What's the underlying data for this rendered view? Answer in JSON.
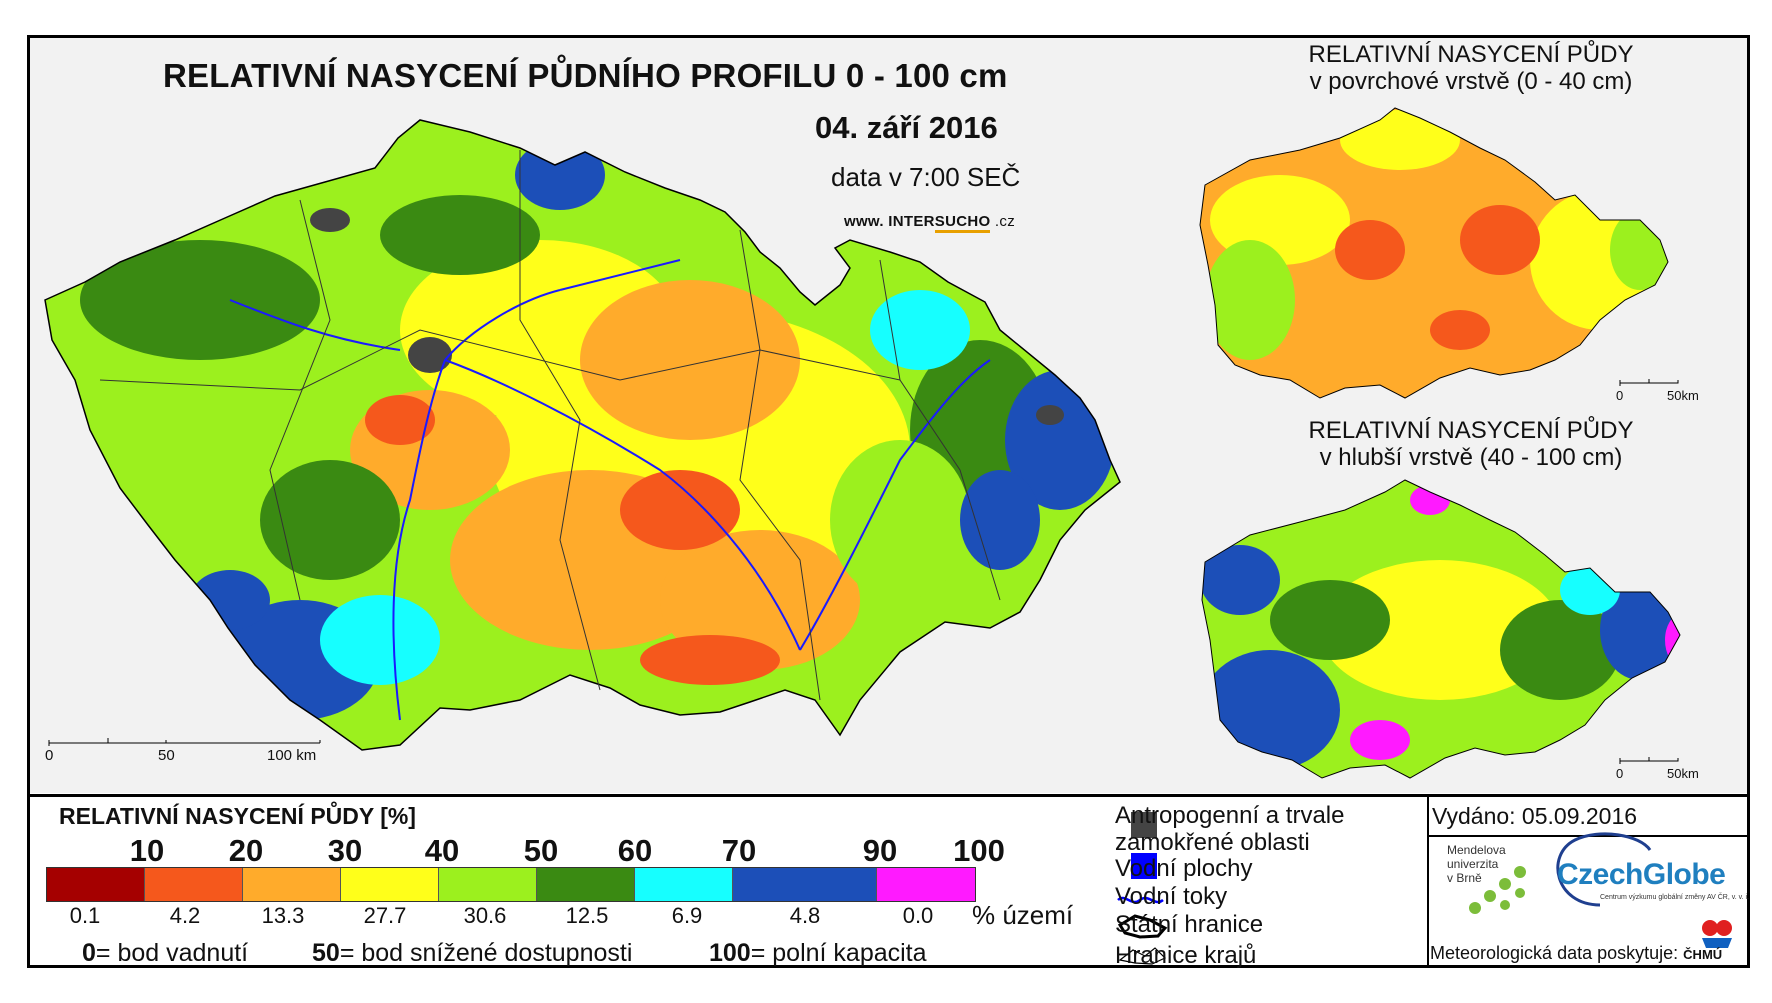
{
  "main_map": {
    "title": "RELATIVNÍ NASYCENÍ PŮDNÍHO PROFILU 0 - 100 cm",
    "date": "04. září 2016",
    "time": "data v 7:00 SEČ",
    "website_prefix": "www. INTER",
    "website_accent": "SUCHO",
    "website_suffix": " .cz",
    "scale_labels": [
      "0",
      "50",
      "100 km"
    ]
  },
  "inset_surface": {
    "title_line1": "RELATIVNÍ NASYCENÍ PŮDY",
    "title_line2": "v povrchové vrstvě (0 - 40 cm)",
    "scale_labels": [
      "0",
      "50km"
    ]
  },
  "inset_deep": {
    "title_line1": "RELATIVNÍ NASYCENÍ PŮDY",
    "title_line2": "v hlubší vrstvě (40 - 100 cm)",
    "scale_labels": [
      "0",
      "50km"
    ]
  },
  "legend": {
    "heading": "RELATIVNÍ NASYCENÍ PŮDY [%]",
    "ticks": [
      "10",
      "20",
      "30",
      "40",
      "50",
      "60",
      "70",
      "90",
      "100"
    ],
    "classes": [
      {
        "color": "#a50000",
        "area_pct": "0.1"
      },
      {
        "color": "#f5581c",
        "area_pct": "4.2"
      },
      {
        "color": "#ffab2b",
        "area_pct": "13.3"
      },
      {
        "color": "#ffff1a",
        "area_pct": "27.7"
      },
      {
        "color": "#9cf01e",
        "area_pct": "30.6"
      },
      {
        "color": "#3a8a12",
        "area_pct": "12.5"
      },
      {
        "color": "#16ffff",
        "area_pct": "6.9"
      },
      {
        "color": "#1c4fb8",
        "area_pct": "4.8"
      },
      {
        "color": "#ff1aff",
        "area_pct": "0.0"
      }
    ],
    "area_unit": "% území",
    "definitions": [
      {
        "value": "0",
        "text": "= bod vadnutí"
      },
      {
        "value": "50",
        "text": "= bod snížené dostupnosti"
      },
      {
        "value": "100",
        "text": "= polní kapacita"
      }
    ]
  },
  "map_legend": {
    "items": [
      {
        "icon": "dark-square-icon",
        "color": "#444444",
        "label_line1": "Antropogenní a trvale",
        "label_line2": "zamokřené oblasti"
      },
      {
        "icon": "blue-square-icon",
        "color": "#0000ff",
        "label_line1": "Vodní plochy"
      },
      {
        "icon": "river-line-icon",
        "color": "#0000ff",
        "label_line1": "Vodní toky"
      },
      {
        "icon": "state-border-icon",
        "color": "#000000",
        "label_line1": "Státní hranice"
      },
      {
        "icon": "region-border-icon",
        "color": "#000000",
        "label_line1": "Hranice krajů"
      }
    ]
  },
  "credits": {
    "issued": "Vydáno: 05.09.2016",
    "mendel_line1": "Mendelova",
    "mendel_line2": "univerzita",
    "mendel_line3": "v Brně",
    "czechglobe": "CzechGlobe",
    "czechglobe_sub": "Centrum výzkumu globální změny AV ČR, v. v. i.",
    "provider": "Meteorologická data poskytuje:",
    "chmu": "ČHMÚ"
  }
}
